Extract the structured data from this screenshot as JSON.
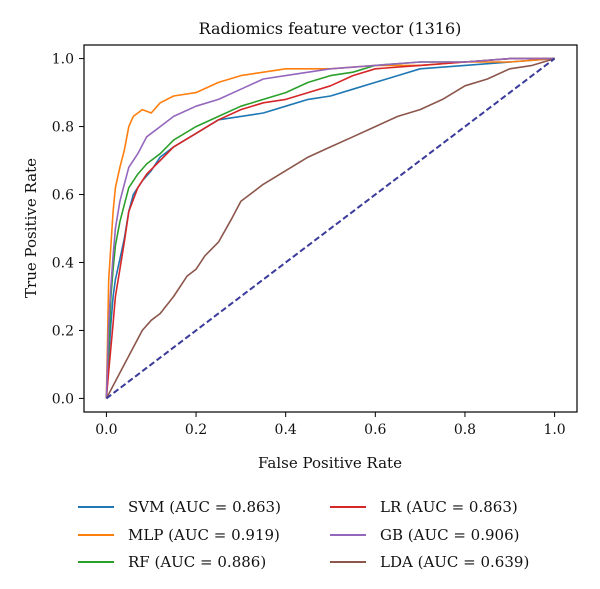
{
  "chart_data": {
    "type": "line",
    "title": "Radiomics feature vector (1316)",
    "xlabel": "False Positive Rate",
    "ylabel": "True Positive Rate",
    "xlim": [
      -0.05,
      1.05
    ],
    "ylim": [
      -0.04,
      1.04
    ],
    "xticks": [
      0.0,
      0.2,
      0.4,
      0.6,
      0.8,
      1.0
    ],
    "xtick_labels": [
      "0.0",
      "0.2",
      "0.4",
      "0.6",
      "0.8",
      "1.0"
    ],
    "yticks": [
      0.0,
      0.2,
      0.4,
      0.6,
      0.8,
      1.0
    ],
    "ytick_labels": [
      "0.0",
      "0.2",
      "0.4",
      "0.6",
      "0.8",
      "1.0"
    ],
    "grid": false,
    "legend_position": "bottom",
    "chance_line": {
      "x": [
        0,
        1
      ],
      "y": [
        0,
        1
      ],
      "color": "#3b3b9b",
      "style": "dashed"
    },
    "series": [
      {
        "name": "SVM (AUC = 0.863)",
        "color": "#1f77b4",
        "x": [
          0,
          0.005,
          0.01,
          0.015,
          0.02,
          0.03,
          0.04,
          0.05,
          0.06,
          0.08,
          0.1,
          0.12,
          0.15,
          0.2,
          0.25,
          0.3,
          0.35,
          0.4,
          0.45,
          0.5,
          0.55,
          0.6,
          0.65,
          0.7,
          0.8,
          0.9,
          1.0
        ],
        "y": [
          0,
          0.12,
          0.22,
          0.3,
          0.35,
          0.41,
          0.47,
          0.55,
          0.6,
          0.64,
          0.67,
          0.71,
          0.74,
          0.78,
          0.82,
          0.83,
          0.84,
          0.86,
          0.88,
          0.89,
          0.91,
          0.93,
          0.95,
          0.97,
          0.98,
          0.99,
          1.0
        ]
      },
      {
        "name": "MLP (AUC = 0.919)",
        "color": "#ff7f0e",
        "x": [
          0,
          0.005,
          0.01,
          0.015,
          0.02,
          0.03,
          0.04,
          0.05,
          0.06,
          0.08,
          0.1,
          0.12,
          0.15,
          0.2,
          0.25,
          0.3,
          0.35,
          0.4,
          0.5,
          0.6,
          0.7,
          0.8,
          0.9,
          1.0
        ],
        "y": [
          0,
          0.35,
          0.45,
          0.55,
          0.62,
          0.68,
          0.73,
          0.8,
          0.83,
          0.85,
          0.84,
          0.87,
          0.89,
          0.9,
          0.93,
          0.95,
          0.96,
          0.97,
          0.97,
          0.98,
          0.98,
          0.99,
          0.99,
          1.0
        ]
      },
      {
        "name": "RF (AUC = 0.886)",
        "color": "#2ca02c",
        "x": [
          0,
          0.005,
          0.01,
          0.015,
          0.02,
          0.03,
          0.04,
          0.05,
          0.07,
          0.09,
          0.12,
          0.15,
          0.2,
          0.25,
          0.3,
          0.35,
          0.4,
          0.45,
          0.5,
          0.55,
          0.6,
          0.7,
          0.8,
          0.9,
          1.0
        ],
        "y": [
          0,
          0.15,
          0.3,
          0.38,
          0.45,
          0.52,
          0.57,
          0.62,
          0.66,
          0.69,
          0.72,
          0.76,
          0.8,
          0.83,
          0.86,
          0.88,
          0.9,
          0.93,
          0.95,
          0.96,
          0.98,
          0.99,
          0.99,
          1.0,
          1.0
        ]
      },
      {
        "name": "LR (AUC = 0.863)",
        "color": "#d62728",
        "x": [
          0,
          0.005,
          0.01,
          0.015,
          0.02,
          0.03,
          0.04,
          0.05,
          0.07,
          0.09,
          0.12,
          0.15,
          0.2,
          0.25,
          0.3,
          0.35,
          0.4,
          0.45,
          0.5,
          0.55,
          0.6,
          0.7,
          0.8,
          0.9,
          1.0
        ],
        "y": [
          0,
          0.08,
          0.15,
          0.22,
          0.3,
          0.38,
          0.46,
          0.55,
          0.62,
          0.66,
          0.7,
          0.74,
          0.78,
          0.82,
          0.85,
          0.87,
          0.88,
          0.9,
          0.92,
          0.95,
          0.97,
          0.98,
          0.99,
          1.0,
          1.0
        ]
      },
      {
        "name": "GB (AUC = 0.906)",
        "color": "#9467bd",
        "x": [
          0,
          0.005,
          0.01,
          0.015,
          0.02,
          0.03,
          0.04,
          0.05,
          0.07,
          0.09,
          0.12,
          0.15,
          0.2,
          0.25,
          0.3,
          0.35,
          0.4,
          0.5,
          0.6,
          0.7,
          0.8,
          0.9,
          1.0
        ],
        "y": [
          0,
          0.22,
          0.33,
          0.42,
          0.5,
          0.58,
          0.63,
          0.68,
          0.72,
          0.77,
          0.8,
          0.83,
          0.86,
          0.88,
          0.91,
          0.94,
          0.95,
          0.97,
          0.98,
          0.99,
          0.99,
          1.0,
          1.0
        ]
      },
      {
        "name": "LDA (AUC = 0.639)",
        "color": "#8c564b",
        "x": [
          0,
          0.02,
          0.04,
          0.06,
          0.08,
          0.1,
          0.12,
          0.15,
          0.18,
          0.2,
          0.22,
          0.25,
          0.28,
          0.3,
          0.35,
          0.4,
          0.45,
          0.5,
          0.55,
          0.6,
          0.65,
          0.7,
          0.75,
          0.8,
          0.85,
          0.9,
          0.95,
          1.0
        ],
        "y": [
          0,
          0.05,
          0.1,
          0.15,
          0.2,
          0.23,
          0.25,
          0.3,
          0.36,
          0.38,
          0.42,
          0.46,
          0.53,
          0.58,
          0.63,
          0.67,
          0.71,
          0.74,
          0.77,
          0.8,
          0.83,
          0.85,
          0.88,
          0.92,
          0.94,
          0.97,
          0.98,
          1.0
        ]
      }
    ]
  }
}
